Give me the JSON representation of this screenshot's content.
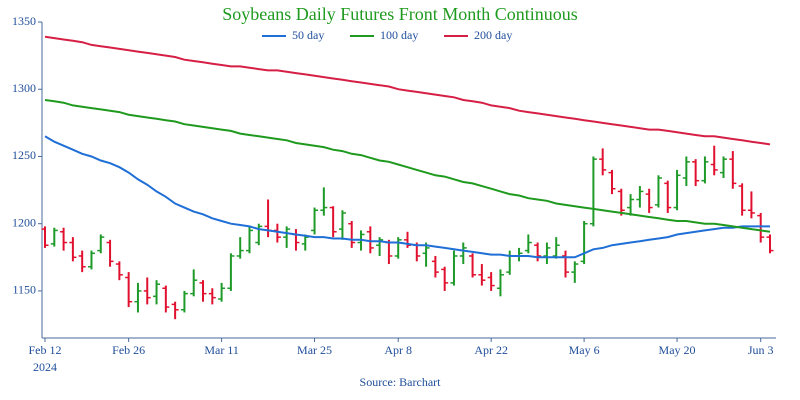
{
  "chart_data": {
    "type": "ohlc",
    "title": "Soybeans Daily Futures Front Month Continuous",
    "source": "Source: Barchart",
    "x_year_label": "2024",
    "x": [
      "2024-02-12",
      "2024-02-13",
      "2024-02-14",
      "2024-02-15",
      "2024-02-16",
      "2024-02-20",
      "2024-02-21",
      "2024-02-22",
      "2024-02-23",
      "2024-02-26",
      "2024-02-27",
      "2024-02-28",
      "2024-02-29",
      "2024-03-01",
      "2024-03-04",
      "2024-03-05",
      "2024-03-06",
      "2024-03-07",
      "2024-03-08",
      "2024-03-11",
      "2024-03-12",
      "2024-03-13",
      "2024-03-14",
      "2024-03-15",
      "2024-03-18",
      "2024-03-19",
      "2024-03-20",
      "2024-03-21",
      "2024-03-22",
      "2024-03-25",
      "2024-03-26",
      "2024-03-27",
      "2024-03-28",
      "2024-04-01",
      "2024-04-02",
      "2024-04-03",
      "2024-04-04",
      "2024-04-05",
      "2024-04-08",
      "2024-04-09",
      "2024-04-10",
      "2024-04-11",
      "2024-04-12",
      "2024-04-15",
      "2024-04-16",
      "2024-04-17",
      "2024-04-18",
      "2024-04-19",
      "2024-04-22",
      "2024-04-23",
      "2024-04-24",
      "2024-04-25",
      "2024-04-26",
      "2024-04-29",
      "2024-04-30",
      "2024-05-01",
      "2024-05-02",
      "2024-05-03",
      "2024-05-06",
      "2024-05-07",
      "2024-05-08",
      "2024-05-09",
      "2024-05-10",
      "2024-05-13",
      "2024-05-14",
      "2024-05-15",
      "2024-05-16",
      "2024-05-17",
      "2024-05-20",
      "2024-05-21",
      "2024-05-22",
      "2024-05-23",
      "2024-05-24",
      "2024-05-28",
      "2024-05-29",
      "2024-05-30",
      "2024-05-31",
      "2024-06-03",
      "2024-06-04"
    ],
    "open": [
      1196,
      1185,
      1194,
      1186,
      1176,
      1168,
      1180,
      1186,
      1170,
      1160,
      1142,
      1150,
      1146,
      1152,
      1140,
      1136,
      1148,
      1156,
      1148,
      1144,
      1152,
      1176,
      1180,
      1186,
      1198,
      1195,
      1190,
      1192,
      1185,
      1195,
      1210,
      1212,
      1196,
      1200,
      1186,
      1194,
      1184,
      1186,
      1176,
      1188,
      1184,
      1178,
      1172,
      1166,
      1156,
      1176,
      1176,
      1162,
      1160,
      1152,
      1164,
      1176,
      1180,
      1184,
      1176,
      1176,
      1176,
      1164,
      1172,
      1200,
      1248,
      1238,
      1224,
      1212,
      1218,
      1222,
      1214,
      1230,
      1212,
      1234,
      1246,
      1232,
      1244,
      1238,
      1248,
      1228,
      1210,
      1206,
      1190
    ],
    "high": [
      1198,
      1197,
      1197,
      1190,
      1180,
      1180,
      1192,
      1188,
      1172,
      1164,
      1156,
      1160,
      1158,
      1154,
      1142,
      1150,
      1166,
      1158,
      1152,
      1156,
      1178,
      1190,
      1198,
      1200,
      1218,
      1200,
      1198,
      1196,
      1192,
      1212,
      1227,
      1213,
      1210,
      1202,
      1195,
      1198,
      1190,
      1188,
      1190,
      1194,
      1186,
      1186,
      1176,
      1168,
      1180,
      1186,
      1178,
      1170,
      1164,
      1166,
      1180,
      1182,
      1192,
      1186,
      1186,
      1190,
      1180,
      1172,
      1202,
      1250,
      1256,
      1240,
      1226,
      1222,
      1228,
      1226,
      1236,
      1232,
      1240,
      1250,
      1248,
      1250,
      1258,
      1250,
      1254,
      1230,
      1224,
      1208,
      1192
    ],
    "low": [
      1182,
      1183,
      1180,
      1172,
      1164,
      1166,
      1178,
      1168,
      1158,
      1138,
      1134,
      1140,
      1140,
      1134,
      1129,
      1134,
      1146,
      1142,
      1140,
      1142,
      1150,
      1174,
      1178,
      1184,
      1190,
      1186,
      1182,
      1180,
      1180,
      1192,
      1206,
      1190,
      1188,
      1182,
      1180,
      1178,
      1176,
      1170,
      1174,
      1182,
      1172,
      1168,
      1160,
      1150,
      1154,
      1170,
      1160,
      1154,
      1150,
      1146,
      1162,
      1172,
      1178,
      1172,
      1170,
      1174,
      1160,
      1156,
      1170,
      1198,
      1236,
      1222,
      1206,
      1206,
      1212,
      1208,
      1212,
      1208,
      1210,
      1228,
      1228,
      1230,
      1236,
      1234,
      1226,
      1206,
      1204,
      1186,
      1178
    ],
    "close": [
      1184,
      1195,
      1186,
      1175,
      1168,
      1178,
      1190,
      1172,
      1162,
      1142,
      1150,
      1145,
      1155,
      1138,
      1136,
      1148,
      1158,
      1148,
      1145,
      1152,
      1176,
      1180,
      1195,
      1198,
      1195,
      1190,
      1196,
      1186,
      1190,
      1210,
      1212,
      1194,
      1208,
      1186,
      1192,
      1182,
      1188,
      1176,
      1188,
      1184,
      1176,
      1182,
      1164,
      1156,
      1176,
      1182,
      1162,
      1158,
      1154,
      1162,
      1176,
      1178,
      1186,
      1176,
      1182,
      1184,
      1164,
      1170,
      1200,
      1248,
      1240,
      1226,
      1210,
      1218,
      1224,
      1212,
      1234,
      1212,
      1236,
      1246,
      1232,
      1246,
      1240,
      1248,
      1230,
      1210,
      1208,
      1190,
      1180
    ],
    "up_color": "#1e9a28",
    "down_color": "#e0102e",
    "moving_averages": [
      {
        "name": "50 day",
        "color": "#1f6fd6",
        "values": [
          1265,
          1261,
          1258,
          1255,
          1252,
          1250,
          1247,
          1245,
          1242,
          1238,
          1233,
          1229,
          1224,
          1220,
          1215,
          1212,
          1209,
          1207,
          1204,
          1202,
          1200,
          1199,
          1198,
          1196,
          1195,
          1194,
          1193,
          1192,
          1191,
          1190,
          1190,
          1189,
          1189,
          1188,
          1188,
          1187,
          1187,
          1186,
          1186,
          1185,
          1184,
          1184,
          1183,
          1182,
          1181,
          1180,
          1179,
          1178,
          1177,
          1177,
          1176,
          1176,
          1176,
          1175,
          1175,
          1175,
          1175,
          1175,
          1178,
          1181,
          1182,
          1184,
          1185,
          1186,
          1187,
          1188,
          1189,
          1190,
          1192,
          1193,
          1194,
          1195,
          1196,
          1197,
          1197,
          1198,
          1198,
          1198,
          1198
        ]
      },
      {
        "name": "100 day",
        "color": "#1f9a1f",
        "values": [
          1292,
          1291,
          1290,
          1288,
          1287,
          1286,
          1285,
          1284,
          1283,
          1281,
          1280,
          1279,
          1278,
          1277,
          1276,
          1274,
          1273,
          1272,
          1271,
          1270,
          1269,
          1267,
          1266,
          1265,
          1264,
          1263,
          1262,
          1260,
          1259,
          1258,
          1257,
          1255,
          1254,
          1252,
          1251,
          1249,
          1247,
          1246,
          1244,
          1242,
          1240,
          1238,
          1236,
          1235,
          1233,
          1231,
          1230,
          1228,
          1226,
          1224,
          1222,
          1221,
          1219,
          1218,
          1217,
          1215,
          1214,
          1213,
          1212,
          1211,
          1210,
          1209,
          1208,
          1207,
          1206,
          1205,
          1204,
          1203,
          1202,
          1202,
          1201,
          1200,
          1200,
          1199,
          1198,
          1197,
          1196,
          1195,
          1194
        ]
      },
      {
        "name": "200 day",
        "color": "#d61f45",
        "values": [
          1339,
          1338,
          1337,
          1336,
          1335,
          1333,
          1332,
          1331,
          1330,
          1329,
          1328,
          1327,
          1326,
          1325,
          1324,
          1322,
          1321,
          1320,
          1319,
          1318,
          1317,
          1317,
          1316,
          1315,
          1314,
          1314,
          1313,
          1312,
          1311,
          1310,
          1309,
          1308,
          1307,
          1306,
          1305,
          1304,
          1303,
          1302,
          1300,
          1299,
          1298,
          1297,
          1296,
          1295,
          1294,
          1292,
          1291,
          1290,
          1288,
          1287,
          1286,
          1284,
          1283,
          1282,
          1281,
          1280,
          1279,
          1278,
          1277,
          1276,
          1275,
          1274,
          1273,
          1272,
          1271,
          1270,
          1270,
          1269,
          1268,
          1267,
          1266,
          1265,
          1265,
          1264,
          1263,
          1262,
          1261,
          1260,
          1259
        ]
      }
    ],
    "ylim": [
      1115,
      1350
    ],
    "yticks": [
      1150,
      1200,
      1250,
      1300,
      1350
    ],
    "xticks": [
      {
        "value": "2024-02-12",
        "label": "Feb 12"
      },
      {
        "value": "2024-02-26",
        "label": "Feb 26"
      },
      {
        "value": "2024-03-11",
        "label": "Mar 11"
      },
      {
        "value": "2024-03-25",
        "label": "Mar 25"
      },
      {
        "value": "2024-04-08",
        "label": "Apr 8"
      },
      {
        "value": "2024-04-22",
        "label": "Apr 22"
      },
      {
        "value": "2024-05-06",
        "label": "May 6"
      },
      {
        "value": "2024-05-20",
        "label": "May 20"
      },
      {
        "value": "2024-06-03",
        "label": "Jun 3"
      }
    ],
    "grid": false,
    "legend": "top"
  }
}
